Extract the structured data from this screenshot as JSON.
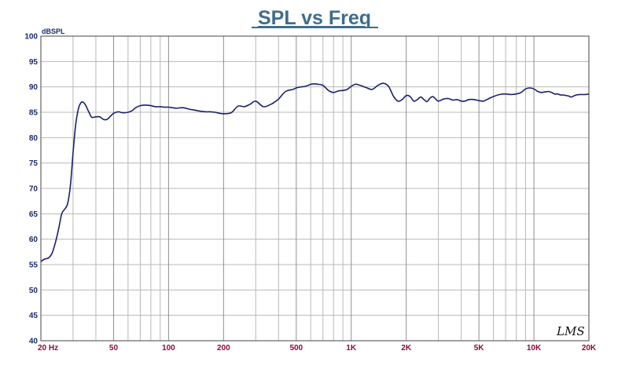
{
  "chart_data": {
    "type": "line",
    "title": "SPL vs Freq",
    "ylabel": "dBSPL",
    "xlabel": "",
    "xscale": "log",
    "xlim": [
      20,
      20000
    ],
    "ylim": [
      40,
      100
    ],
    "grid": true,
    "yticks": [
      "100",
      "95",
      "90",
      "85",
      "80",
      "75",
      "70",
      "65",
      "60",
      "55",
      "50",
      "45",
      "40"
    ],
    "ytick_values": [
      100,
      95,
      90,
      85,
      80,
      75,
      70,
      65,
      60,
      55,
      50,
      45,
      40
    ],
    "xticks": [
      "20  Hz",
      "50",
      "100",
      "200",
      "500",
      "1K",
      "2K",
      "5K",
      "10K",
      "20K"
    ],
    "xtick_values": [
      20,
      50,
      100,
      200,
      500,
      1000,
      2000,
      5000,
      10000,
      20000
    ],
    "series": [
      {
        "x": [
          20,
          21,
          22,
          23,
          24,
          25,
          26,
          27,
          28,
          29,
          30,
          31,
          32,
          33,
          34,
          35,
          36,
          37,
          38,
          40,
          42,
          44,
          46,
          48,
          50,
          53,
          56,
          60,
          63,
          66,
          70,
          73,
          76,
          80,
          85,
          90,
          95,
          100,
          105,
          110,
          120,
          130,
          140,
          150,
          160,
          170,
          180,
          190,
          200,
          220,
          240,
          260,
          280,
          300,
          330,
          360,
          380,
          400,
          430,
          450,
          480,
          500,
          530,
          560,
          600,
          630,
          660,
          700,
          750,
          800,
          850,
          900,
          950,
          1000,
          1050,
          1100,
          1200,
          1300,
          1400,
          1500,
          1600,
          1700,
          1800,
          1900,
          2000,
          2100,
          2200,
          2300,
          2400,
          2500,
          2600,
          2700,
          2800,
          2900,
          3000,
          3200,
          3400,
          3600,
          3800,
          4000,
          4200,
          4400,
          4700,
          5000,
          5300,
          5600,
          6000,
          6500,
          7000,
          7500,
          8000,
          8500,
          9000,
          9500,
          10000,
          10500,
          11000,
          11500,
          12000,
          12500,
          13000,
          13500,
          14000,
          14500,
          15000,
          15500,
          16000,
          17000,
          18000,
          19000,
          20000
        ],
        "y": [
          55.6,
          56.1,
          56.3,
          57.2,
          59.3,
          62,
          65,
          65.9,
          67,
          70.5,
          77,
          82.5,
          85.5,
          86.8,
          87,
          86.5,
          85.6,
          84.7,
          84,
          84.1,
          84.1,
          83.6,
          83.6,
          84.2,
          84.8,
          85.1,
          84.9,
          85,
          85.3,
          85.9,
          86.3,
          86.4,
          86.4,
          86.3,
          86.1,
          86.1,
          86,
          86,
          85.9,
          85.8,
          85.9,
          85.6,
          85.4,
          85.2,
          85.1,
          85.1,
          85,
          84.8,
          84.7,
          84.9,
          86.2,
          86.1,
          86.6,
          87.2,
          86.1,
          86.5,
          87,
          87.6,
          88.9,
          89.3,
          89.5,
          89.8,
          90,
          90.1,
          90.5,
          90.6,
          90.5,
          90.3,
          89.3,
          88.9,
          89.2,
          89.3,
          89.5,
          90.1,
          90.5,
          90.4,
          89.9,
          89.5,
          90.3,
          90.7,
          90.1,
          88.2,
          87.2,
          87.5,
          88.3,
          88.1,
          87.2,
          87.5,
          88,
          87.5,
          87.1,
          87.8,
          88.1,
          87.6,
          87.2,
          87.6,
          87.7,
          87.4,
          87.5,
          87.2,
          87.2,
          87.5,
          87.5,
          87.3,
          87.2,
          87.6,
          88.1,
          88.5,
          88.6,
          88.5,
          88.6,
          88.9,
          89.6,
          89.8,
          89.6,
          89.1,
          88.9,
          89,
          89.1,
          88.9,
          88.6,
          88.6,
          88.4,
          88.4,
          88.3,
          88.2,
          88,
          88.4,
          88.5,
          88.5,
          88.6
        ]
      }
    ],
    "colors": {
      "title": "#3c6e8c",
      "line": "#1a1f6e",
      "ytick": "#1a2a6c",
      "xtick": "#8b0a3a",
      "grid": "#b8b8b8"
    }
  },
  "watermark": "LMS"
}
